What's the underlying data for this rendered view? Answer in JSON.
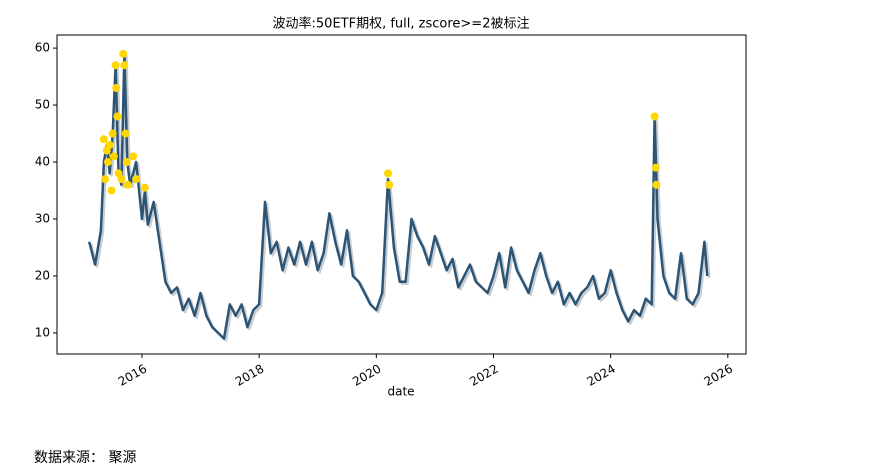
{
  "chart_data": {
    "type": "line",
    "title": "波动率:50ETF期权, full, zscore>=2被标注",
    "x_label": "date",
    "source": "数据来源： 聚源",
    "xlim": [
      2014.55,
      2026.31
    ],
    "xticks": [
      2016,
      2018,
      2020,
      2022,
      2024,
      2026
    ],
    "ylim": [
      6.3,
      62.3
    ],
    "yticks": [
      10,
      20,
      30,
      40,
      50,
      60
    ],
    "series": [
      {
        "type": "line",
        "color": "#2c5474",
        "x": [
          2015.1,
          2015.2,
          2015.3,
          2015.35,
          2015.4,
          2015.45,
          2015.5,
          2015.55,
          2015.6,
          2015.65,
          2015.7,
          2015.75,
          2015.8,
          2015.9,
          2016.0,
          2016.05,
          2016.1,
          2016.2,
          2016.3,
          2016.4,
          2016.5,
          2016.6,
          2016.7,
          2016.8,
          2016.9,
          2017.0,
          2017.1,
          2017.2,
          2017.3,
          2017.4,
          2017.5,
          2017.6,
          2017.7,
          2017.8,
          2017.9,
          2018.0,
          2018.1,
          2018.2,
          2018.3,
          2018.4,
          2018.5,
          2018.6,
          2018.7,
          2018.8,
          2018.9,
          2019.0,
          2019.1,
          2019.2,
          2019.3,
          2019.4,
          2019.5,
          2019.6,
          2019.7,
          2019.8,
          2019.9,
          2020.0,
          2020.1,
          2020.2,
          2020.3,
          2020.4,
          2020.5,
          2020.6,
          2020.7,
          2020.8,
          2020.9,
          2021.0,
          2021.1,
          2021.2,
          2021.3,
          2021.4,
          2021.5,
          2021.6,
          2021.7,
          2021.8,
          2021.9,
          2022.0,
          2022.1,
          2022.2,
          2022.3,
          2022.4,
          2022.5,
          2022.6,
          2022.7,
          2022.8,
          2022.9,
          2023.0,
          2023.1,
          2023.2,
          2023.3,
          2023.4,
          2023.5,
          2023.6,
          2023.7,
          2023.8,
          2023.9,
          2024.0,
          2024.1,
          2024.2,
          2024.3,
          2024.4,
          2024.5,
          2024.6,
          2024.7,
          2024.75,
          2024.8,
          2024.9,
          2025.0,
          2025.1,
          2025.2,
          2025.3,
          2025.4,
          2025.5,
          2025.6,
          2025.65
        ],
        "values": [
          26,
          22,
          28,
          40,
          43,
          38,
          45,
          57,
          38,
          36,
          59,
          40,
          36,
          40,
          30,
          35,
          29,
          33,
          26,
          19,
          17,
          18,
          14,
          16,
          13,
          17,
          13,
          11,
          10,
          9,
          15,
          13,
          15,
          11,
          14,
          15,
          33,
          24,
          26,
          21,
          25,
          22,
          26,
          22,
          26,
          21,
          24,
          31,
          26,
          22,
          28,
          20,
          19,
          17,
          15,
          14,
          17,
          37,
          25,
          19,
          19,
          30,
          27,
          25,
          22,
          27,
          24,
          21,
          23,
          18,
          20,
          22,
          19,
          18,
          17,
          20,
          24,
          18,
          25,
          21,
          19,
          17,
          21,
          24,
          20,
          17,
          19,
          15,
          17,
          15,
          17,
          18,
          20,
          16,
          17,
          21,
          17,
          14,
          12,
          14,
          13,
          16,
          15,
          48,
          30,
          20,
          17,
          16,
          24,
          16,
          15,
          17,
          26,
          20
        ]
      },
      {
        "type": "scatter",
        "color": "#ffd700",
        "x": [
          2015.35,
          2015.37,
          2015.4,
          2015.42,
          2015.45,
          2015.48,
          2015.5,
          2015.52,
          2015.55,
          2015.56,
          2015.58,
          2015.6,
          2015.65,
          2015.68,
          2015.7,
          2015.72,
          2015.74,
          2015.76,
          2015.85,
          2015.9,
          2016.05,
          2020.2,
          2020.22,
          2024.75,
          2024.77,
          2024.78
        ],
        "values": [
          44,
          37,
          42,
          40,
          43,
          35,
          45,
          41,
          57,
          53,
          48,
          38,
          37,
          59,
          57,
          45,
          40,
          36,
          41,
          37,
          35.5,
          38,
          36,
          48,
          39,
          36
        ]
      }
    ]
  }
}
